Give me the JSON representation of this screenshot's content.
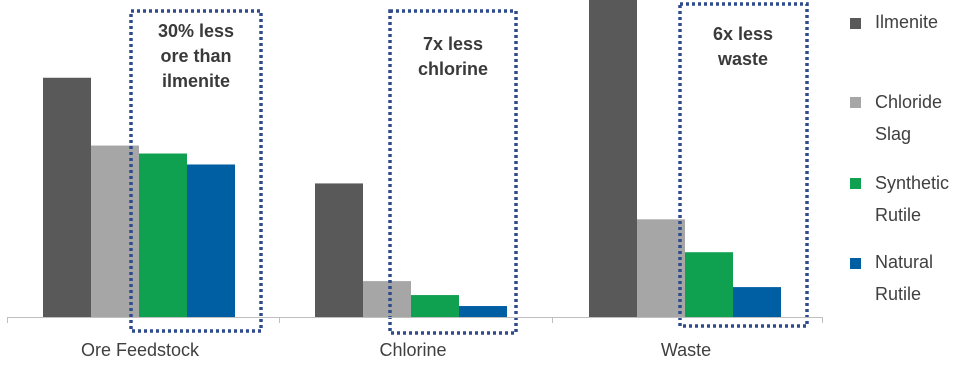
{
  "chart_data": {
    "type": "bar",
    "categories": [
      "Ore Feedstock",
      "Chlorine",
      "Waste"
    ],
    "series": [
      {
        "name": "Ilmenite",
        "color": "#595959",
        "values": [
          240,
          134,
          318
        ]
      },
      {
        "name": "Chloride Slag",
        "color": "#a6a6a6",
        "values": [
          172,
          36,
          98
        ]
      },
      {
        "name": "Synthetic Rutile",
        "color": "#0fa050",
        "values": [
          164,
          22,
          65
        ]
      },
      {
        "name": "Natural Rutile",
        "color": "#005fa3",
        "values": [
          153,
          11,
          30
        ]
      }
    ],
    "ylim": [
      0,
      318
    ],
    "annotations": [
      {
        "category": "Ore Feedstock",
        "lines": [
          "30% less",
          "ore than",
          "ilmenite"
        ]
      },
      {
        "category": "Chlorine",
        "lines": [
          "7x less",
          "chlorine"
        ]
      },
      {
        "category": "Waste",
        "lines": [
          "6x less",
          "waste"
        ]
      }
    ],
    "legend_position": "right",
    "annotation_border_color": "#2f4b8c",
    "axis_color": "#bfbfbf"
  }
}
